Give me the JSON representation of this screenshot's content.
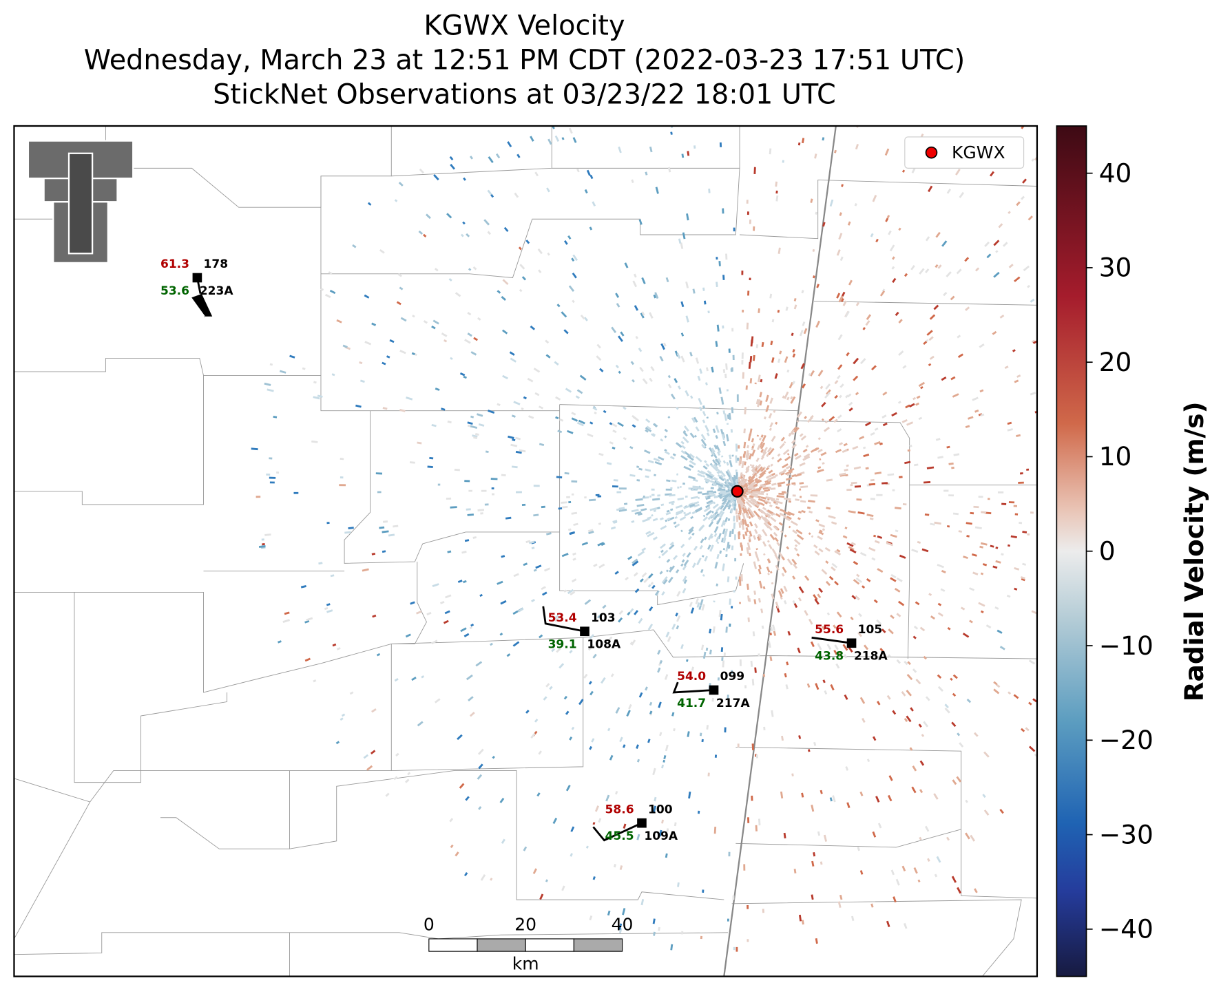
{
  "title": [
    "KGWX Velocity",
    "Wednesday, March 23 at 12:51 PM CDT (2022-03-23 17:51 UTC)",
    "StickNet Observations at 03/23/22 18:01 UTC"
  ],
  "legend": [
    "KGWX"
  ],
  "colorbar": {
    "label": "Radial Velocity (m/s)",
    "lim": [
      -45,
      45
    ],
    "ticks": [
      {
        "value": -40,
        "label": "−40"
      },
      {
        "value": -30,
        "label": "−30"
      },
      {
        "value": -20,
        "label": "−20"
      },
      {
        "value": -10,
        "label": "−10"
      },
      0,
      10,
      20,
      30,
      40
    ]
  },
  "scale_bar": {
    "ticks": [
      0,
      20,
      40
    ],
    "unit": "km"
  },
  "stations": [
    {
      "id": "223A",
      "temperature": 61.3,
      "dewpoint": 53.6,
      "pressure": "178"
    },
    {
      "id": "108A",
      "temperature": 53.4,
      "dewpoint": 39.1,
      "pressure": "103"
    },
    {
      "id": "217A",
      "temperature": {
        "value": 54.0,
        "label": "54.0"
      },
      "dewpoint": 41.7,
      "pressure": "099"
    },
    {
      "id": "218A",
      "temperature": 55.6,
      "dewpoint": 43.8,
      "pressure": "105"
    },
    {
      "id": "109A",
      "temperature": 58.6,
      "dewpoint": 45.5,
      "pressure": "100"
    }
  ]
}
